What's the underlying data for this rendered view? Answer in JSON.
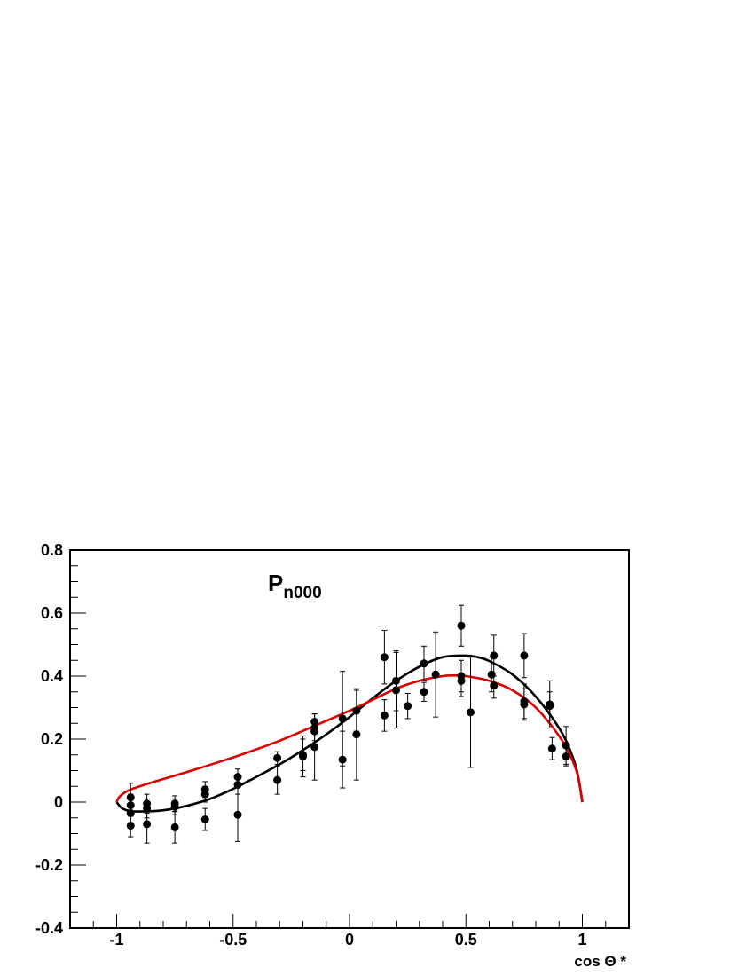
{
  "chart_data": {
    "type": "scatter",
    "title": "P",
    "title_subscript": "n000",
    "xlabel": "cos Θ *",
    "ylabel": "",
    "xlim": [
      -1.2,
      1.2
    ],
    "ylim": [
      -0.4,
      0.8
    ],
    "x_ticks": [
      -1,
      -0.5,
      0,
      0.5,
      1
    ],
    "x_tick_labels": [
      "-1",
      "-0.5",
      "0",
      "0.5",
      "1"
    ],
    "y_ticks": [
      -0.4,
      -0.2,
      0,
      0.2,
      0.4,
      0.6,
      0.8
    ],
    "y_tick_labels": [
      "-0.4",
      "-0.2",
      "0",
      "0.2",
      "0.4",
      "0.6",
      "0.8"
    ],
    "grid": false,
    "series": [
      {
        "kind": "points_with_errors",
        "color": "#000000",
        "points": [
          {
            "x": -0.94,
            "y": 0.015,
            "err": 0.045
          },
          {
            "x": -0.94,
            "y": -0.01,
            "err": 0.035
          },
          {
            "x": -0.94,
            "y": -0.035,
            "err": 0.03
          },
          {
            "x": -0.94,
            "y": -0.075,
            "err": 0.035
          },
          {
            "x": -0.87,
            "y": -0.005,
            "err": 0.03
          },
          {
            "x": -0.87,
            "y": -0.02,
            "err": 0.03
          },
          {
            "x": -0.87,
            "y": -0.07,
            "err": 0.06
          },
          {
            "x": -0.75,
            "y": -0.005,
            "err": 0.025
          },
          {
            "x": -0.75,
            "y": -0.015,
            "err": 0.025
          },
          {
            "x": -0.75,
            "y": -0.08,
            "err": 0.05
          },
          {
            "x": -0.62,
            "y": 0.04,
            "err": 0.025
          },
          {
            "x": -0.62,
            "y": 0.025,
            "err": 0.025
          },
          {
            "x": -0.62,
            "y": -0.055,
            "err": 0.035
          },
          {
            "x": -0.48,
            "y": 0.08,
            "err": 0.025
          },
          {
            "x": -0.48,
            "y": 0.055,
            "err": 0.03
          },
          {
            "x": -0.48,
            "y": -0.04,
            "err": 0.085
          },
          {
            "x": -0.31,
            "y": 0.14,
            "err": 0.02
          },
          {
            "x": -0.31,
            "y": 0.07,
            "err": 0.045
          },
          {
            "x": -0.2,
            "y": 0.15,
            "err": 0.05
          },
          {
            "x": -0.2,
            "y": 0.145,
            "err": 0.065
          },
          {
            "x": -0.15,
            "y": 0.255,
            "err": 0.025
          },
          {
            "x": -0.15,
            "y": 0.235,
            "err": 0.025
          },
          {
            "x": -0.15,
            "y": 0.225,
            "err": 0.03
          },
          {
            "x": -0.15,
            "y": 0.175,
            "err": 0.105
          },
          {
            "x": -0.03,
            "y": 0.265,
            "err": 0.15
          },
          {
            "x": -0.03,
            "y": 0.135,
            "err": 0.09
          },
          {
            "x": 0.03,
            "y": 0.29,
            "err": 0.065
          },
          {
            "x": 0.03,
            "y": 0.215,
            "err": 0.145
          },
          {
            "x": 0.15,
            "y": 0.46,
            "err": 0.085
          },
          {
            "x": 0.15,
            "y": 0.275,
            "err": 0.05
          },
          {
            "x": 0.2,
            "y": 0.385,
            "err": 0.095
          },
          {
            "x": 0.2,
            "y": 0.355,
            "err": 0.12
          },
          {
            "x": 0.25,
            "y": 0.305,
            "err": 0.04
          },
          {
            "x": 0.32,
            "y": 0.44,
            "err": 0.055
          },
          {
            "x": 0.32,
            "y": 0.35,
            "err": 0.03
          },
          {
            "x": 0.37,
            "y": 0.405,
            "err": 0.135
          },
          {
            "x": 0.48,
            "y": 0.56,
            "err": 0.065
          },
          {
            "x": 0.48,
            "y": 0.4,
            "err": 0.05
          },
          {
            "x": 0.48,
            "y": 0.385,
            "err": 0.05
          },
          {
            "x": 0.52,
            "y": 0.285,
            "err": 0.175
          },
          {
            "x": 0.61,
            "y": 0.405,
            "err": 0.055
          },
          {
            "x": 0.62,
            "y": 0.465,
            "err": 0.065
          },
          {
            "x": 0.62,
            "y": 0.37,
            "err": 0.04
          },
          {
            "x": 0.75,
            "y": 0.465,
            "err": 0.07
          },
          {
            "x": 0.75,
            "y": 0.32,
            "err": 0.055
          },
          {
            "x": 0.75,
            "y": 0.31,
            "err": 0.05
          },
          {
            "x": 0.86,
            "y": 0.31,
            "err": 0.075
          },
          {
            "x": 0.86,
            "y": 0.305,
            "err": 0.045
          },
          {
            "x": 0.87,
            "y": 0.17,
            "err": 0.035
          },
          {
            "x": 0.93,
            "y": 0.18,
            "err": 0.06
          },
          {
            "x": 0.93,
            "y": 0.145,
            "err": 0.03
          }
        ]
      },
      {
        "kind": "curve",
        "color": "#000000",
        "points": [
          [
            -1,
            0
          ],
          [
            -0.98,
            -0.018
          ],
          [
            -0.95,
            -0.027
          ],
          [
            -0.9,
            -0.03
          ],
          [
            -0.8,
            -0.026
          ],
          [
            -0.7,
            -0.012
          ],
          [
            -0.6,
            0.01
          ],
          [
            -0.5,
            0.042
          ],
          [
            -0.4,
            0.08
          ],
          [
            -0.3,
            0.12
          ],
          [
            -0.2,
            0.165
          ],
          [
            -0.1,
            0.215
          ],
          [
            0,
            0.27
          ],
          [
            0.1,
            0.33
          ],
          [
            0.2,
            0.385
          ],
          [
            0.3,
            0.43
          ],
          [
            0.4,
            0.46
          ],
          [
            0.5,
            0.465
          ],
          [
            0.55,
            0.46
          ],
          [
            0.6,
            0.448
          ],
          [
            0.7,
            0.405
          ],
          [
            0.8,
            0.335
          ],
          [
            0.9,
            0.235
          ],
          [
            0.95,
            0.16
          ],
          [
            0.98,
            0.09
          ],
          [
            1,
            0
          ]
        ]
      },
      {
        "kind": "curve",
        "color": "#dd0000",
        "points": [
          [
            -1,
            0
          ],
          [
            -0.99,
            0.015
          ],
          [
            -0.97,
            0.028
          ],
          [
            -0.94,
            0.04
          ],
          [
            -0.85,
            0.062
          ],
          [
            -0.7,
            0.095
          ],
          [
            -0.5,
            0.142
          ],
          [
            -0.3,
            0.195
          ],
          [
            -0.1,
            0.258
          ],
          [
            0,
            0.29
          ],
          [
            0.1,
            0.325
          ],
          [
            0.2,
            0.36
          ],
          [
            0.3,
            0.385
          ],
          [
            0.4,
            0.4
          ],
          [
            0.45,
            0.402
          ],
          [
            0.5,
            0.4
          ],
          [
            0.6,
            0.385
          ],
          [
            0.7,
            0.355
          ],
          [
            0.8,
            0.3
          ],
          [
            0.9,
            0.21
          ],
          [
            0.95,
            0.145
          ],
          [
            0.98,
            0.085
          ],
          [
            1,
            0
          ]
        ]
      }
    ]
  }
}
